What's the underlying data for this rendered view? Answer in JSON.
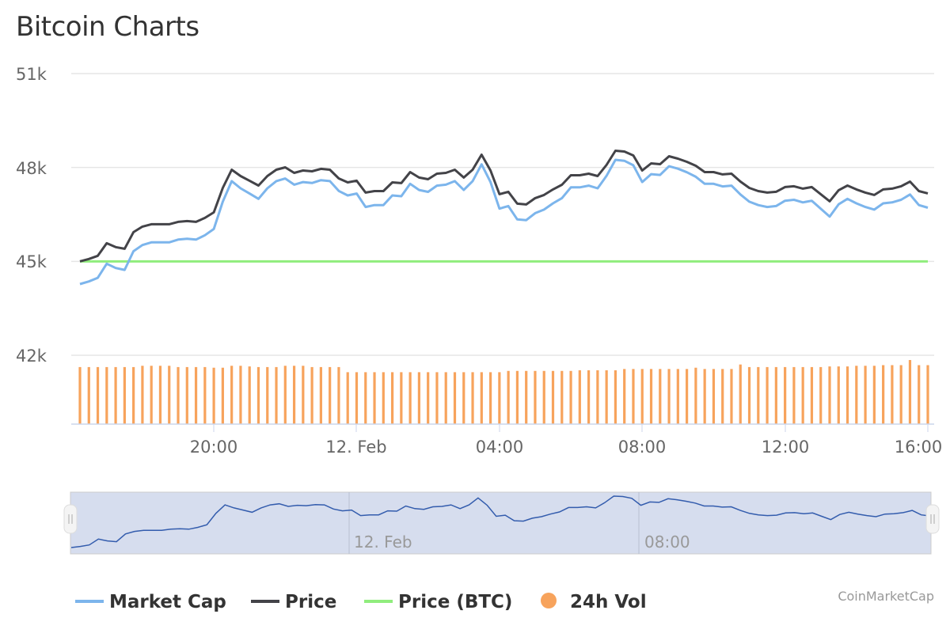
{
  "title": "Bitcoin Charts",
  "credit": "CoinMarketCap",
  "chart_data": {
    "type": "line",
    "title": "Bitcoin Charts",
    "x_start": "11 Feb 16:15",
    "x_step_minutes": 15,
    "x_tick_labels": [
      "20:00",
      "12. Feb",
      "04:00",
      "08:00",
      "12:00",
      "16:00"
    ],
    "y_tick_labels": [
      "51k",
      "48k",
      "45k",
      "42k"
    ],
    "ylim": [
      42000,
      51000
    ],
    "grid": true,
    "legend_position": "bottom",
    "series": [
      {
        "name": "Market Cap",
        "color": "#7cb5ec",
        "axis": "hidden",
        "unit": "billion USD",
        "values": [
          838.4,
          839.8,
          841.7,
          849.2,
          846.9,
          845.9,
          855.8,
          859.1,
          860.5,
          860.5,
          860.5,
          862.0,
          862.4,
          862.0,
          864.3,
          867.6,
          882.1,
          893.0,
          889.2,
          886.4,
          883.6,
          889.2,
          893.0,
          894.4,
          891.1,
          892.5,
          892.0,
          893.5,
          893.0,
          887.8,
          885.4,
          886.4,
          879.3,
          880.3,
          880.3,
          885.4,
          885.0,
          891.6,
          888.3,
          887.3,
          890.6,
          891.1,
          893.0,
          888.3,
          893.0,
          901.9,
          892.5,
          878.4,
          879.8,
          872.7,
          872.3,
          876.0,
          877.9,
          881.2,
          884.0,
          889.7,
          889.7,
          890.6,
          889.2,
          895.8,
          904.3,
          903.8,
          901.4,
          892.5,
          896.7,
          896.3,
          900.9,
          899.6,
          897.7,
          895.3,
          891.6,
          891.6,
          890.2,
          890.6,
          885.9,
          882.1,
          880.3,
          879.3,
          879.8,
          882.6,
          883.1,
          881.7,
          882.6,
          878.4,
          874.2,
          880.7,
          883.6,
          881.2,
          879.3,
          877.9,
          881.2,
          881.7,
          883.1,
          885.9,
          880.3,
          878.9
        ]
      },
      {
        "name": "Price",
        "color": "#434348",
        "unit": "USD",
        "values": [
          45000,
          45076,
          45177,
          45581,
          45455,
          45404,
          45934,
          46111,
          46187,
          46187,
          46187,
          46263,
          46288,
          46263,
          46389,
          46566,
          47348,
          47929,
          47727,
          47576,
          47424,
          47727,
          47929,
          48005,
          47828,
          47904,
          47879,
          47955,
          47929,
          47651,
          47525,
          47576,
          47197,
          47247,
          47247,
          47525,
          47500,
          47853,
          47677,
          47626,
          47803,
          47828,
          47929,
          47677,
          47929,
          48409,
          47904,
          47146,
          47222,
          46843,
          46818,
          47020,
          47121,
          47298,
          47449,
          47752,
          47752,
          47803,
          47727,
          48081,
          48535,
          48510,
          48384,
          47904,
          48131,
          48106,
          48358,
          48283,
          48182,
          48056,
          47853,
          47853,
          47778,
          47803,
          47550,
          47348,
          47247,
          47197,
          47222,
          47374,
          47399,
          47323,
          47374,
          47146,
          46919,
          47273,
          47424,
          47298,
          47197,
          47121,
          47298,
          47323,
          47399,
          47550,
          47247,
          47172
        ]
      },
      {
        "name": "Price (BTC)",
        "color": "#90ed7d",
        "constant": 1
      },
      {
        "name": "24h Vol",
        "color": "#f7a35c",
        "type": "bar",
        "axis": "hidden",
        "unit": "fraction of max",
        "values": [
          0.89,
          0.89,
          0.89,
          0.89,
          0.89,
          0.89,
          0.89,
          0.91,
          0.91,
          0.91,
          0.91,
          0.89,
          0.89,
          0.89,
          0.89,
          0.88,
          0.88,
          0.91,
          0.91,
          0.9,
          0.89,
          0.89,
          0.89,
          0.91,
          0.91,
          0.91,
          0.89,
          0.89,
          0.89,
          0.89,
          0.81,
          0.81,
          0.81,
          0.81,
          0.81,
          0.81,
          0.81,
          0.81,
          0.81,
          0.81,
          0.81,
          0.81,
          0.81,
          0.81,
          0.81,
          0.81,
          0.81,
          0.81,
          0.83,
          0.83,
          0.83,
          0.83,
          0.83,
          0.83,
          0.83,
          0.83,
          0.84,
          0.84,
          0.84,
          0.84,
          0.84,
          0.86,
          0.86,
          0.86,
          0.86,
          0.86,
          0.86,
          0.86,
          0.86,
          0.88,
          0.86,
          0.86,
          0.86,
          0.86,
          0.93,
          0.89,
          0.89,
          0.89,
          0.89,
          0.89,
          0.89,
          0.89,
          0.89,
          0.89,
          0.9,
          0.9,
          0.9,
          0.91,
          0.91,
          0.91,
          0.92,
          0.92,
          0.92,
          1.0,
          0.92,
          0.92
        ]
      }
    ],
    "navigator": {
      "x_tick_labels": [
        "12. Feb",
        "08:00"
      ]
    }
  }
}
